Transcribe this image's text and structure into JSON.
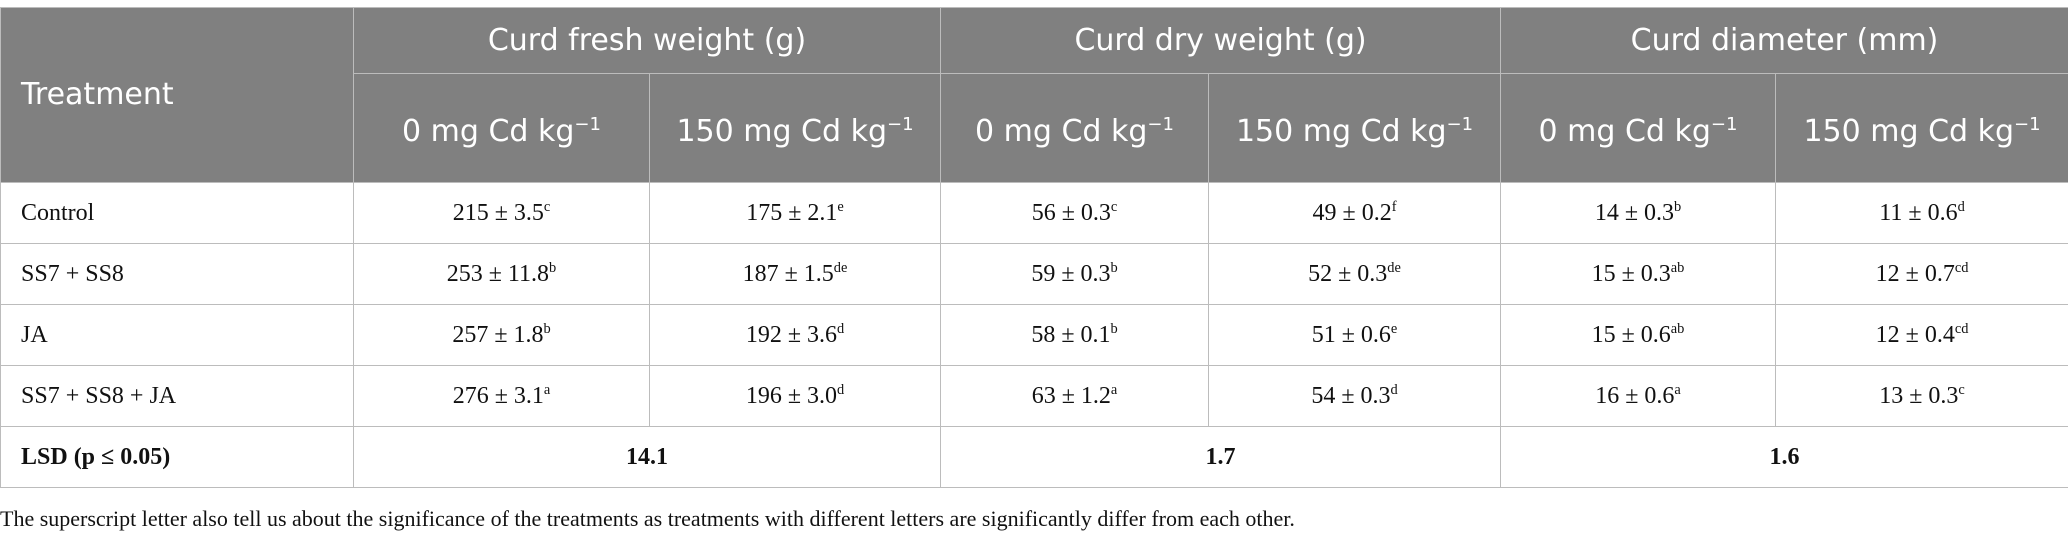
{
  "table": {
    "header": {
      "treatment": "Treatment",
      "groups": [
        "Curd fresh weight (g)",
        "Curd dry weight (g)",
        "Curd diameter (mm)"
      ],
      "subheaders": [
        {
          "text": "0 mg Cd kg",
          "sup": "−1"
        },
        {
          "text": "150 mg Cd kg",
          "sup": "−1"
        },
        {
          "text": "0 mg Cd kg",
          "sup": "−1"
        },
        {
          "text": "150 mg Cd kg",
          "sup": "−1"
        },
        {
          "text": "0 mg Cd kg",
          "sup": "−1"
        },
        {
          "text": "150 mg Cd kg",
          "sup": "−1"
        }
      ]
    },
    "rows": [
      {
        "treatment": "Control",
        "cells": [
          {
            "text": "215 ± 3.5",
            "sup": "c"
          },
          {
            "text": "175 ± 2.1",
            "sup": "e"
          },
          {
            "text": "56 ± 0.3",
            "sup": "c"
          },
          {
            "text": "49 ± 0.2",
            "sup": "f"
          },
          {
            "text": "14 ± 0.3",
            "sup": "b"
          },
          {
            "text": "11 ± 0.6",
            "sup": "d"
          }
        ]
      },
      {
        "treatment": "SS7 + SS8",
        "cells": [
          {
            "text": "253 ± 11.8",
            "sup": "b"
          },
          {
            "text": "187 ± 1.5",
            "sup": "de"
          },
          {
            "text": "59 ± 0.3",
            "sup": "b"
          },
          {
            "text": "52 ± 0.3",
            "sup": "de"
          },
          {
            "text": "15 ± 0.3",
            "sup": "ab"
          },
          {
            "text": "12 ± 0.7",
            "sup": "cd"
          }
        ]
      },
      {
        "treatment": "JA",
        "cells": [
          {
            "text": "257 ± 1.8",
            "sup": "b"
          },
          {
            "text": "192 ± 3.6",
            "sup": "d"
          },
          {
            "text": "58 ± 0.1",
            "sup": "b"
          },
          {
            "text": "51 ± 0.6",
            "sup": "e"
          },
          {
            "text": "15 ± 0.6",
            "sup": "ab"
          },
          {
            "text": "12 ± 0.4",
            "sup": "cd"
          }
        ]
      },
      {
        "treatment": "SS7 + SS8 + JA",
        "cells": [
          {
            "text": "276 ± 3.1",
            "sup": "a"
          },
          {
            "text": "196 ± 3.0",
            "sup": "d"
          },
          {
            "text": "63 ± 1.2",
            "sup": "a"
          },
          {
            "text": "54 ± 0.3",
            "sup": "d"
          },
          {
            "text": "16 ± 0.6",
            "sup": "a"
          },
          {
            "text": "13 ± 0.3",
            "sup": "c"
          }
        ]
      }
    ],
    "lsd": {
      "label": "LSD (p ≤ 0.05)",
      "values": [
        "14.1",
        "1.7",
        "1.6"
      ]
    }
  },
  "footnote": "The superscript letter also tell us about the significance of the treatments as treatments with different letters are significantly differ from each other."
}
